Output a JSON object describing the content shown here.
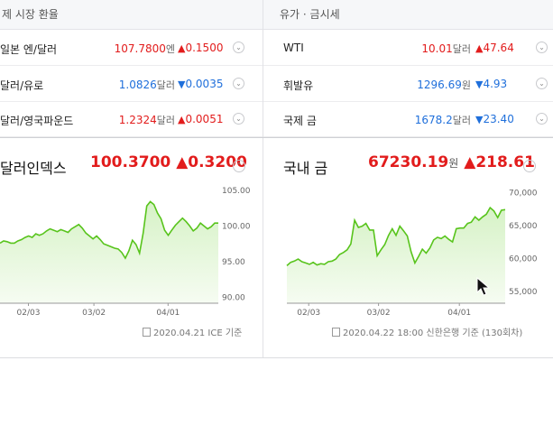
{
  "fx": {
    "header": "제 시장 환율",
    "rows": [
      {
        "name": "일본 엔/달러",
        "value": "107.7800",
        "unit": "엔",
        "change": "0.1500",
        "dir": "up"
      },
      {
        "name": "달러/유로",
        "value": "1.0826",
        "unit": "달러",
        "change": "0.0035",
        "dir": "down"
      },
      {
        "name": "달러/영국파운드",
        "value": "1.2324",
        "unit": "달러",
        "change": "0.0051",
        "dir": "up"
      }
    ],
    "featured": {
      "name": "달러인덱스",
      "value": "100.3700",
      "change": "0.3200",
      "dir": "up"
    },
    "basis": "2020.04.21 ICE 기준"
  },
  "oil": {
    "header": "유가 · 금시세",
    "rows": [
      {
        "name": "WTI",
        "value": "10.01",
        "unit": "달러",
        "change": "47.64",
        "dir": "up"
      },
      {
        "name": "휘발유",
        "value": "1296.69",
        "unit": "원",
        "change": "4.93",
        "dir": "down"
      },
      {
        "name": "국제 금",
        "value": "1678.2",
        "unit": "달러",
        "change": "23.40",
        "dir": "down"
      }
    ],
    "featured": {
      "name": "국내 금",
      "value": "67230.19",
      "unit": "원",
      "change": "218.61",
      "dir": "up"
    },
    "basis": "2020.04.22 18:00 신한은행 기준 (130회차)"
  },
  "icons": {
    "up": "▲",
    "down": "▼",
    "toggle": "⌄",
    "toggle_up": "⌃"
  },
  "colors": {
    "up": "#e21c1c",
    "down": "#1f6fdb",
    "line": "#58c41c",
    "fill_top": "#d6f2c6",
    "fill_bottom": "#f6fcf2"
  },
  "chart_data": [
    {
      "type": "area",
      "title": "",
      "xlabel": "",
      "ylabel": "",
      "x_ticks": [
        "02/03",
        "03/02",
        "04/01"
      ],
      "y_ticks": [
        90,
        95,
        100,
        105
      ],
      "ylim": [
        89.2,
        105.6
      ],
      "grid": false,
      "values": [
        97.6,
        97.9,
        97.8,
        97.6,
        97.6,
        97.9,
        98.1,
        98.4,
        98.6,
        98.4,
        98.9,
        98.7,
        98.9,
        99.3,
        99.6,
        99.4,
        99.2,
        99.5,
        99.3,
        99.1,
        99.6,
        99.9,
        100.2,
        99.7,
        99.0,
        98.6,
        98.2,
        98.6,
        98.1,
        97.5,
        97.3,
        97.1,
        96.9,
        96.8,
        96.3,
        95.5,
        96.5,
        98.0,
        97.4,
        96.2,
        99.0,
        102.8,
        103.4,
        103.0,
        101.8,
        101.0,
        99.4,
        98.7,
        99.4,
        100.1,
        100.6,
        101.1,
        100.6,
        100.0,
        99.3,
        99.7,
        100.4,
        100.0,
        99.6,
        99.9,
        100.4,
        100.4
      ]
    },
    {
      "type": "area",
      "title": "",
      "xlabel": "",
      "ylabel": "",
      "x_ticks": [
        "02/03",
        "03/02",
        "04/01"
      ],
      "y_ticks": [
        55000,
        60000,
        65000,
        70000
      ],
      "ylim": [
        53200,
        71000
      ],
      "grid": false,
      "values": [
        58900,
        59400,
        59600,
        59900,
        59500,
        59300,
        59100,
        59400,
        59000,
        59200,
        59100,
        59500,
        59600,
        59900,
        60600,
        60900,
        61300,
        62200,
        65800,
        64700,
        64900,
        65300,
        64300,
        64300,
        60400,
        61300,
        62100,
        63500,
        64500,
        63500,
        64900,
        64200,
        63400,
        61000,
        59300,
        60300,
        61400,
        60800,
        61600,
        62800,
        63200,
        63000,
        63400,
        62900,
        62500,
        64500,
        64600,
        64600,
        65300,
        65500,
        66300,
        65800,
        66300,
        66700,
        67700,
        67200,
        66200,
        67300,
        67400
      ]
    }
  ]
}
